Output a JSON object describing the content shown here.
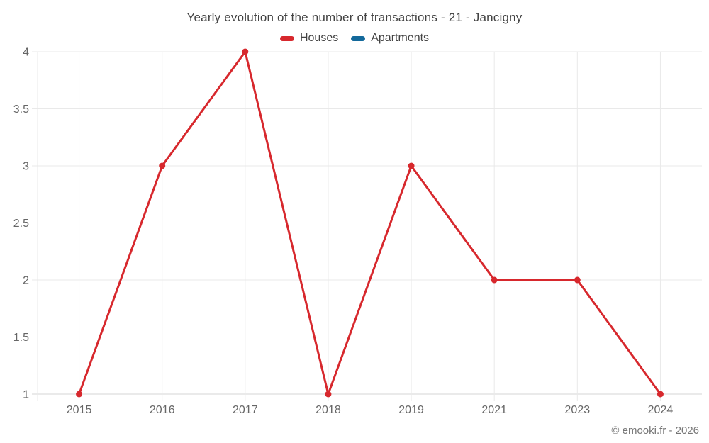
{
  "title": "Yearly evolution of the number of transactions - 21 - Jancigny",
  "copyright": "© emooki.fr - 2026",
  "colors": {
    "background": "#ffffff",
    "houses": "#d7282d",
    "apartments": "#13699b",
    "gridline": "#e9e9e9",
    "axis_line": "#d6d6d6",
    "title_text": "#424242",
    "tick_text": "#666666",
    "legend_text": "#424242",
    "copyright_text": "#757575"
  },
  "legend": {
    "items": [
      {
        "label": "Houses",
        "color": "#d7282d"
      },
      {
        "label": "Apartments",
        "color": "#13699b"
      }
    ]
  },
  "chart_data": {
    "type": "line",
    "title": "Yearly evolution of the number of transactions - 21 - Jancigny",
    "categories": [
      "2015",
      "2016",
      "2017",
      "2018",
      "2019",
      "2021",
      "2023",
      "2024"
    ],
    "series": [
      {
        "name": "Houses",
        "color": "#d7282d",
        "values": [
          1,
          3,
          4,
          1,
          3,
          2,
          2,
          1
        ]
      },
      {
        "name": "Apartments",
        "color": "#13699b",
        "values": []
      }
    ],
    "xlabel": "",
    "ylabel": "",
    "ylim": [
      1,
      4
    ],
    "yticks": [
      1,
      1.5,
      2,
      2.5,
      3,
      3.5,
      4
    ],
    "grid": true,
    "legend_position": "top",
    "marker": "circle",
    "marker_radius": 4.5,
    "line_width": 3
  }
}
